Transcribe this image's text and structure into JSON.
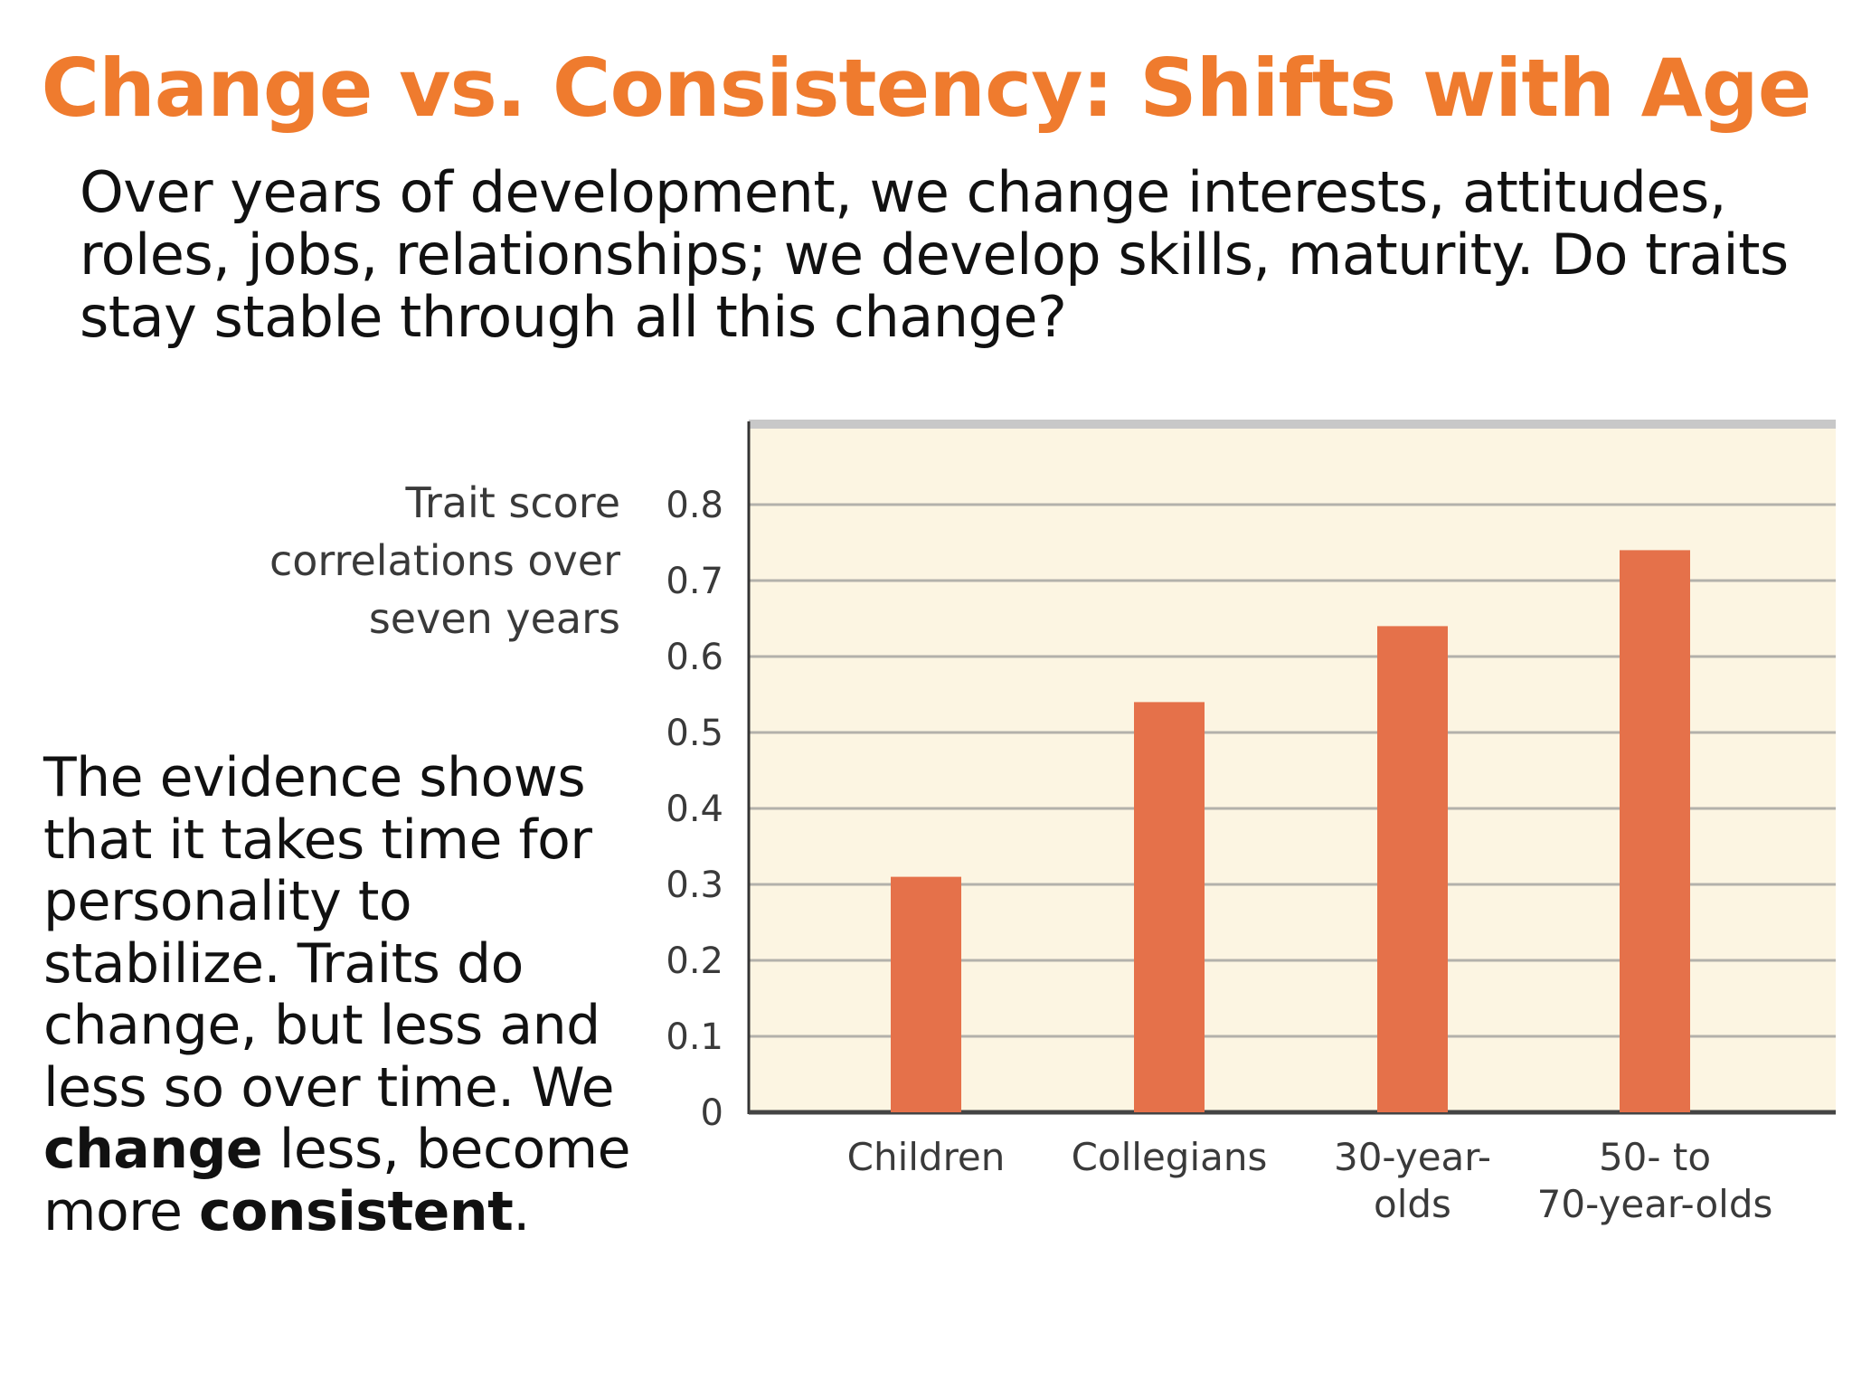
{
  "slide": {
    "title": "Change vs. Consistency:  Shifts with Age",
    "intro_lines": [
      "Over years of development, we change interests,  attitudes,",
      "roles, jobs, relationships;  we develop skills, maturity.  Do traits",
      "stay stable through all this change?"
    ],
    "evidence": {
      "line1": "The evidence shows",
      "line2": "that it takes time for",
      "line3": "personality to",
      "line4": "stabilize. Traits do",
      "line5": "change, but less and",
      "line6": "less so over time. We",
      "line7_bold": "change",
      "line7_rest": " less, become",
      "line8_pre": "more ",
      "line8_bold": "consistent",
      "line8_end": "."
    }
  },
  "colors": {
    "title": "#ef7b2e",
    "bar": "#e5714a",
    "plot_background": "#fcf5e2",
    "gridline": "#b3b1ab",
    "frame": "#c8c8c8"
  },
  "chart_data": {
    "type": "bar",
    "ylabel_lines": [
      "Trait score",
      "correlations over",
      "seven years"
    ],
    "categories": [
      "Children",
      "Collegians",
      "30-year-olds",
      "50- to 70-year-olds"
    ],
    "category_label_lines": [
      [
        "Children"
      ],
      [
        "Collegians"
      ],
      [
        "30-year-",
        "olds"
      ],
      [
        "50- to",
        "70-year-olds"
      ]
    ],
    "values": [
      0.31,
      0.54,
      0.64,
      0.74
    ],
    "ylim": [
      0,
      0.9
    ],
    "yticks": [
      "0",
      "0.1",
      "0.2",
      "0.3",
      "0.4",
      "0.5",
      "0.6",
      "0.7",
      "0.8"
    ],
    "grid": true,
    "legend": "none"
  }
}
